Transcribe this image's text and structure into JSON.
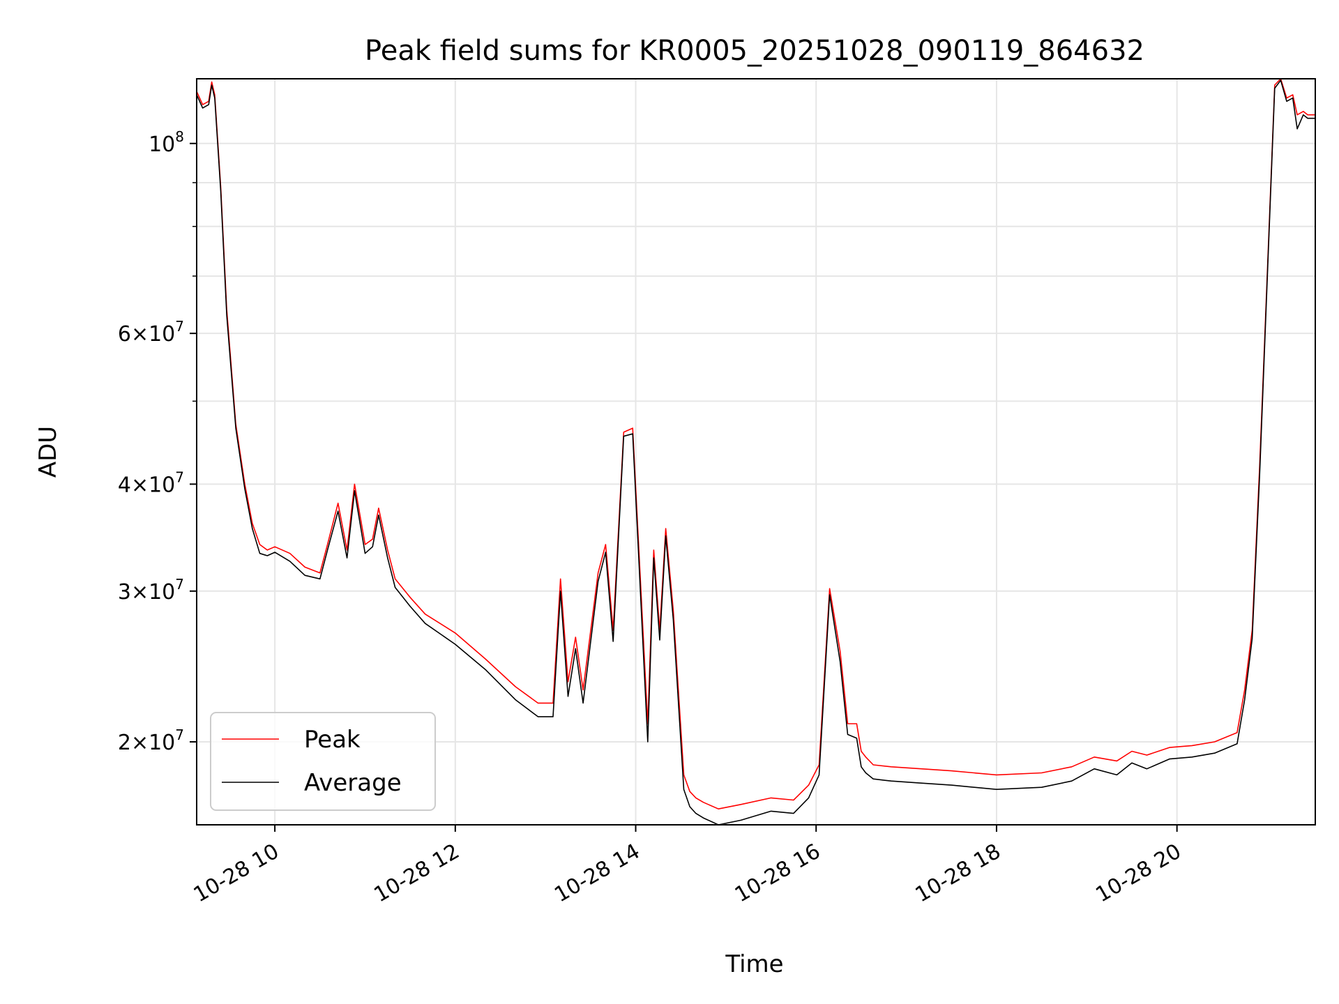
{
  "chart_data": {
    "type": "line",
    "title": "Peak field sums for KR0005_20251028_090119_864632",
    "xlabel": "Time",
    "ylabel": "ADU",
    "yscale": "log",
    "grid": true,
    "legend_position": "lower-left",
    "xlim": [
      "2025-10-28 09:08",
      "2025-10-28 21:32"
    ],
    "ylim": [
      16000000,
      119000000
    ],
    "x_ticks": [
      {
        "value": "2025-10-28 10:00",
        "label": "10-28 10"
      },
      {
        "value": "2025-10-28 12:00",
        "label": "10-28 12"
      },
      {
        "value": "2025-10-28 14:00",
        "label": "10-28 14"
      },
      {
        "value": "2025-10-28 16:00",
        "label": "10-28 16"
      },
      {
        "value": "2025-10-28 18:00",
        "label": "10-28 18"
      },
      {
        "value": "2025-10-28 20:00",
        "label": "10-28 20"
      }
    ],
    "y_ticks": [
      {
        "value": 20000000,
        "mant": "2",
        "base": "10",
        "exp": "7"
      },
      {
        "value": 30000000,
        "mant": "3",
        "base": "10",
        "exp": "7"
      },
      {
        "value": 40000000,
        "mant": "4",
        "base": "10",
        "exp": "7"
      },
      {
        "value": 60000000,
        "mant": "6",
        "base": "10",
        "exp": "7"
      },
      {
        "value": 100000000,
        "mant": "",
        "base": "10",
        "exp": "8"
      }
    ],
    "y_minor_ticks": [
      50000000,
      70000000,
      80000000,
      90000000
    ],
    "x": [
      "2025-10-28 09:08",
      "2025-10-28 09:12",
      "2025-10-28 09:16",
      "2025-10-28 09:18",
      "2025-10-28 09:20",
      "2025-10-28 09:24",
      "2025-10-28 09:28",
      "2025-10-28 09:34",
      "2025-10-28 09:40",
      "2025-10-28 09:45",
      "2025-10-28 09:50",
      "2025-10-28 09:55",
      "2025-10-28 10:00",
      "2025-10-28 10:10",
      "2025-10-28 10:20",
      "2025-10-28 10:30",
      "2025-10-28 10:35",
      "2025-10-28 10:42",
      "2025-10-28 10:48",
      "2025-10-28 10:53",
      "2025-10-28 11:00",
      "2025-10-28 11:05",
      "2025-10-28 11:09",
      "2025-10-28 11:15",
      "2025-10-28 11:20",
      "2025-10-28 11:30",
      "2025-10-28 11:40",
      "2025-10-28 12:00",
      "2025-10-28 12:20",
      "2025-10-28 12:40",
      "2025-10-28 12:55",
      "2025-10-28 13:05",
      "2025-10-28 13:10",
      "2025-10-28 13:15",
      "2025-10-28 13:20",
      "2025-10-28 13:25",
      "2025-10-28 13:35",
      "2025-10-28 13:40",
      "2025-10-28 13:45",
      "2025-10-28 13:52",
      "2025-10-28 13:58",
      "2025-10-28 14:08",
      "2025-10-28 14:12",
      "2025-10-28 14:16",
      "2025-10-28 14:20",
      "2025-10-28 14:25",
      "2025-10-28 14:32",
      "2025-10-28 14:36",
      "2025-10-28 14:40",
      "2025-10-28 14:45",
      "2025-10-28 14:55",
      "2025-10-28 15:10",
      "2025-10-28 15:30",
      "2025-10-28 15:45",
      "2025-10-28 15:55",
      "2025-10-28 16:02",
      "2025-10-28 16:09",
      "2025-10-28 16:16",
      "2025-10-28 16:21",
      "2025-10-28 16:27",
      "2025-10-28 16:30",
      "2025-10-28 16:33",
      "2025-10-28 16:38",
      "2025-10-28 16:50",
      "2025-10-28 17:10",
      "2025-10-28 17:30",
      "2025-10-28 18:00",
      "2025-10-28 18:30",
      "2025-10-28 18:50",
      "2025-10-28 19:05",
      "2025-10-28 19:20",
      "2025-10-28 19:30",
      "2025-10-28 19:40",
      "2025-10-28 19:55",
      "2025-10-28 20:10",
      "2025-10-28 20:25",
      "2025-10-28 20:40",
      "2025-10-28 20:45",
      "2025-10-28 20:50",
      "2025-10-28 20:55",
      "2025-10-28 21:00",
      "2025-10-28 21:05",
      "2025-10-28 21:09",
      "2025-10-28 21:13",
      "2025-10-28 21:17",
      "2025-10-28 21:20",
      "2025-10-28 21:24",
      "2025-10-28 21:27",
      "2025-10-28 21:32"
    ],
    "series": [
      {
        "name": "Peak",
        "color": "#ff0000",
        "values": [
          115000000,
          111000000,
          112000000,
          118000000,
          114000000,
          89000000,
          64000000,
          47000000,
          40000000,
          36000000,
          34000000,
          33500000,
          33800000,
          33200000,
          32000000,
          31500000,
          34000000,
          38000000,
          33500000,
          40000000,
          34000000,
          34500000,
          37500000,
          33500000,
          31000000,
          29500000,
          28200000,
          26800000,
          25000000,
          23200000,
          22200000,
          22200000,
          31000000,
          23500000,
          26500000,
          23000000,
          31500000,
          34000000,
          27000000,
          46000000,
          46500000,
          21000000,
          33500000,
          27000000,
          35500000,
          28500000,
          18300000,
          17500000,
          17200000,
          17000000,
          16700000,
          16900000,
          17200000,
          17100000,
          17800000,
          18800000,
          30200000,
          25500000,
          21000000,
          21000000,
          19500000,
          19200000,
          18800000,
          18700000,
          18600000,
          18500000,
          18300000,
          18400000,
          18700000,
          19200000,
          19000000,
          19500000,
          19300000,
          19700000,
          19800000,
          20000000,
          20500000,
          23000000,
          27000000,
          42000000,
          70000000,
          117000000,
          119000000,
          113000000,
          114000000,
          108000000,
          109000000,
          108000000,
          108000000
        ]
      },
      {
        "name": "Average",
        "color": "#000000",
        "values": [
          114000000,
          110000000,
          111000000,
          117000000,
          113000000,
          88000000,
          63000000,
          46500000,
          39500000,
          35500000,
          33200000,
          33000000,
          33300000,
          32500000,
          31300000,
          31000000,
          33500000,
          37200000,
          32800000,
          39300000,
          33200000,
          33800000,
          36800000,
          32800000,
          30300000,
          28800000,
          27500000,
          26000000,
          24300000,
          22400000,
          21400000,
          21400000,
          30000000,
          22600000,
          25700000,
          22200000,
          30800000,
          33300000,
          26200000,
          45500000,
          45800000,
          20000000,
          32800000,
          26300000,
          34800000,
          27800000,
          17600000,
          16800000,
          16500000,
          16300000,
          16000000,
          16200000,
          16600000,
          16500000,
          17200000,
          18300000,
          29700000,
          24800000,
          20400000,
          20200000,
          18700000,
          18400000,
          18100000,
          18000000,
          17900000,
          17800000,
          17600000,
          17700000,
          18000000,
          18600000,
          18300000,
          18900000,
          18600000,
          19100000,
          19200000,
          19400000,
          19900000,
          22400000,
          26400000,
          41000000,
          69000000,
          116000000,
          118500000,
          112000000,
          113000000,
          104000000,
          108000000,
          107000000,
          107000000
        ]
      }
    ]
  }
}
